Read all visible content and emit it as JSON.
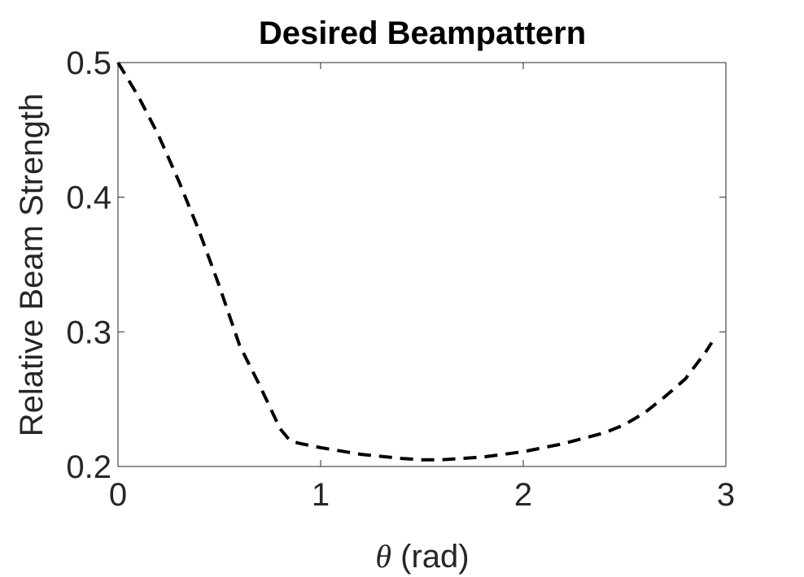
{
  "chart_data": {
    "type": "line",
    "title": "Desired Beampattern",
    "xlabel_symbol": "θ",
    "xlabel_rest": " (rad)",
    "ylabel": "Relative Beam Strength",
    "xlim": [
      0,
      3
    ],
    "ylim": [
      0.2,
      0.5
    ],
    "xticks": [
      0,
      1,
      2,
      3
    ],
    "xtick_labels": [
      "0",
      "1",
      "2",
      "3"
    ],
    "yticks": [
      0.2,
      0.3,
      0.4,
      0.5
    ],
    "ytick_labels": [
      "0.2",
      "0.3",
      "0.4",
      "0.5"
    ],
    "grid": false,
    "line_style": "dashed",
    "line_color": "#000000",
    "series": [
      {
        "x": [
          0,
          0.1,
          0.2,
          0.3,
          0.4,
          0.5,
          0.6,
          0.7,
          0.8,
          0.85,
          0.9,
          1.0,
          1.2,
          1.4,
          1.5,
          1.6,
          1.8,
          2.0,
          2.2,
          2.4,
          2.5,
          2.6,
          2.7,
          2.8,
          2.9,
          2.93
        ],
        "y": [
          0.5,
          0.475,
          0.446,
          0.412,
          0.375,
          0.334,
          0.29,
          0.26,
          0.228,
          0.219,
          0.217,
          0.214,
          0.209,
          0.206,
          0.205,
          0.205,
          0.207,
          0.211,
          0.217,
          0.225,
          0.231,
          0.24,
          0.252,
          0.265,
          0.285,
          0.292
        ]
      }
    ]
  }
}
